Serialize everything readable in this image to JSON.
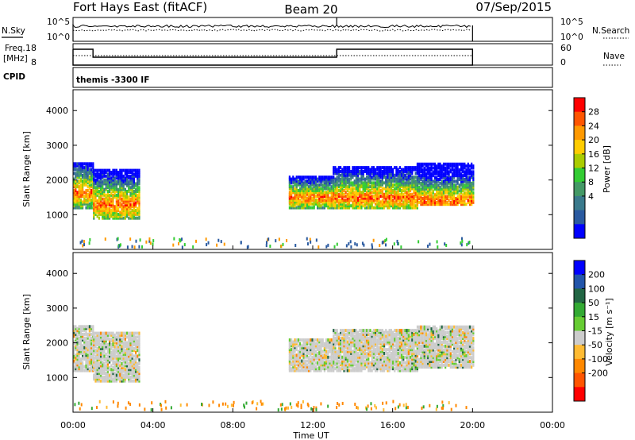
{
  "header": {
    "station": "Fort Hays East (fitACF)",
    "beam": "Beam 20",
    "date": "07/Sep/2015"
  },
  "noise_panel": {
    "left_label": "N.Sky",
    "left_ticks": [
      "10^5",
      "10^0"
    ],
    "right_label": "N.Search",
    "right_ticks": [
      "10^5",
      "10^0"
    ]
  },
  "freq_panel": {
    "left_label_line1": "Freq.",
    "left_label_line2": "[MHz]",
    "left_ticks": [
      "18",
      "8"
    ],
    "right_label": "Nave",
    "right_ticks": [
      "60",
      "0"
    ]
  },
  "cpid_panel": {
    "label": "CPID",
    "program": "themis -3300 IF"
  },
  "chart_data": [
    {
      "type": "heatmap",
      "name": "power",
      "ylabel": "Slant Range [km]",
      "yticks": [
        "4000",
        "3000",
        "2000",
        "1000"
      ],
      "ylim": [
        0,
        4600
      ],
      "xlim_hours": [
        0,
        24
      ],
      "colorbar_label": "Power [dB]",
      "colorbar_ticks": [
        "28",
        "24",
        "20",
        "16",
        "12",
        "8",
        "4"
      ],
      "colorbar_colors": [
        "#ff0000",
        "#ff5500",
        "#ff9900",
        "#ffcc00",
        "#aacc00",
        "#33cc33",
        "#449966",
        "#3a7a8c",
        "#2a5aa0",
        "#0000ff"
      ],
      "echo_regions": [
        {
          "t0": 0.0,
          "t1": 1.0,
          "r0": 1200,
          "r1": 2500,
          "peak": 1650
        },
        {
          "t0": 1.0,
          "t1": 3.3,
          "r0": 900,
          "r1": 2300,
          "peak": 1300
        },
        {
          "t0": 10.8,
          "t1": 13.0,
          "r0": 1200,
          "r1": 2100,
          "peak": 1500
        },
        {
          "t0": 13.0,
          "t1": 17.2,
          "r0": 1200,
          "r1": 2400,
          "peak": 1500
        },
        {
          "t0": 17.2,
          "t1": 20.0,
          "r0": 1300,
          "r1": 2500,
          "peak": 1400
        }
      ]
    },
    {
      "type": "heatmap",
      "name": "velocity",
      "ylabel": "Slant Range [km]",
      "yticks": [
        "4000",
        "3000",
        "2000",
        "1000"
      ],
      "ylim": [
        0,
        4600
      ],
      "xlim_hours": [
        0,
        24
      ],
      "colorbar_label": "Velocity [m s⁻¹]",
      "colorbar_ticks": [
        "200",
        "100",
        "50",
        "15",
        "-15",
        "-50",
        "-100",
        "-200"
      ],
      "colorbar_colors": [
        "#0000ff",
        "#2255aa",
        "#226644",
        "#33aa33",
        "#66cc33",
        "#cccccc",
        "#ffbb33",
        "#ff8800",
        "#ff5500",
        "#ff0000"
      ],
      "echo_regions": [
        {
          "t0": 0.0,
          "t1": 1.0,
          "r0": 1200,
          "r1": 2500,
          "peak": 1650
        },
        {
          "t0": 1.0,
          "t1": 3.3,
          "r0": 900,
          "r1": 2300,
          "peak": 1300
        },
        {
          "t0": 10.8,
          "t1": 13.0,
          "r0": 1200,
          "r1": 2100,
          "peak": 1500
        },
        {
          "t0": 13.0,
          "t1": 17.2,
          "r0": 1200,
          "r1": 2400,
          "peak": 1500
        },
        {
          "t0": 17.2,
          "t1": 20.0,
          "r0": 1300,
          "r1": 2500,
          "peak": 1400
        }
      ]
    }
  ],
  "time_axis": {
    "label": "Time UT",
    "ticks": [
      "00:00",
      "04:00",
      "08:00",
      "12:00",
      "16:00",
      "20:00",
      "00:00"
    ]
  }
}
